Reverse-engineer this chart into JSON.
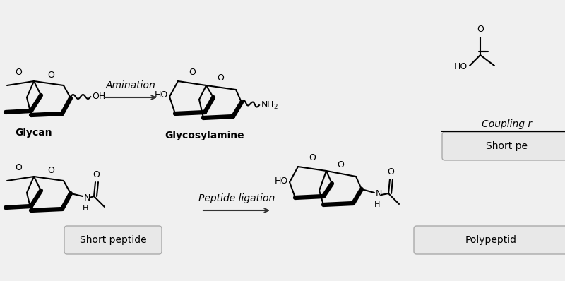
{
  "bg_color": "#f0f0f0",
  "fig_bg": "#f0f0f0",
  "arrow_color": "#333333",
  "text_color": "#000000",
  "top_arrow_label": "Amination",
  "bottom_arrow_label": "Peptide ligation",
  "coupling_label": "Coupling r",
  "glycan_label": "Glycan",
  "glycosylamine_label": "Glycosylamine",
  "short_peptide_label": "Short peptide",
  "short_pe_label": "Short pe",
  "polypeptide_label": "Polypeptid",
  "box_bg": "#e8e8e8",
  "line_color": "#000000",
  "figsize": [
    8.0,
    3.98
  ],
  "dpi": 100
}
